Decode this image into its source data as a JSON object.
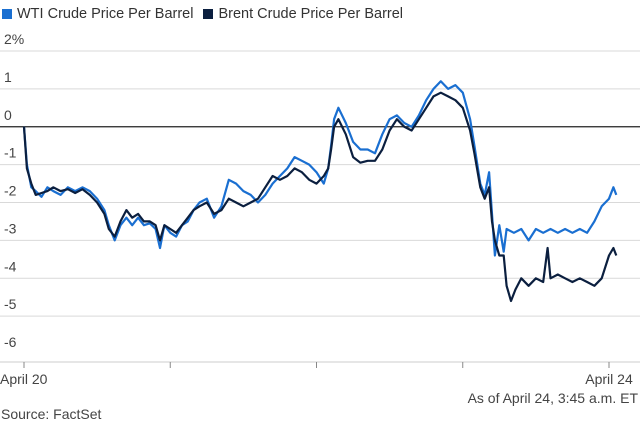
{
  "legend": [
    {
      "label": "WTI Crude Price Per Barrel",
      "color": "#1a6fd1"
    },
    {
      "label": "Brent Crude Price Per Barrel",
      "color": "#0b1f3f"
    }
  ],
  "note": "As of April 24, 3:45 a.m. ET",
  "source": "Source: FactSet",
  "chart_data": {
    "type": "line",
    "title": "",
    "xlabel": "",
    "ylabel": "",
    "y_unit": "%",
    "ylim": [
      -6,
      2
    ],
    "yticks": [
      {
        "value": 2,
        "label": "2%"
      },
      {
        "value": 1,
        "label": "1"
      },
      {
        "value": 0,
        "label": "0"
      },
      {
        "value": -1,
        "label": "-1"
      },
      {
        "value": -2,
        "label": "-2"
      },
      {
        "value": -3,
        "label": "-3"
      },
      {
        "value": -4,
        "label": "-4"
      },
      {
        "value": -5,
        "label": "-5"
      },
      {
        "value": -6,
        "label": "-6"
      }
    ],
    "xlim": [
      0,
      4.05
    ],
    "x_unit": "trading days since April 20",
    "xticks": [
      {
        "value": 0,
        "label": "April 20"
      },
      {
        "value": 1,
        "label": ""
      },
      {
        "value": 2,
        "label": ""
      },
      {
        "value": 3,
        "label": ""
      },
      {
        "value": 4,
        "label": "April 24"
      }
    ],
    "grid": "horizontal",
    "series": [
      {
        "name": "WTI Crude Price Per Barrel",
        "color": "#1a6fd1",
        "points": [
          [
            0,
            0
          ],
          [
            0.02,
            -1.0
          ],
          [
            0.05,
            -1.6
          ],
          [
            0.08,
            -1.7
          ],
          [
            0.12,
            -1.85
          ],
          [
            0.16,
            -1.6
          ],
          [
            0.2,
            -1.7
          ],
          [
            0.25,
            -1.8
          ],
          [
            0.3,
            -1.6
          ],
          [
            0.35,
            -1.7
          ],
          [
            0.4,
            -1.6
          ],
          [
            0.45,
            -1.7
          ],
          [
            0.5,
            -1.9
          ],
          [
            0.55,
            -2.2
          ],
          [
            0.58,
            -2.6
          ],
          [
            0.62,
            -3.0
          ],
          [
            0.66,
            -2.6
          ],
          [
            0.7,
            -2.4
          ],
          [
            0.74,
            -2.6
          ],
          [
            0.78,
            -2.4
          ],
          [
            0.82,
            -2.6
          ],
          [
            0.86,
            -2.55
          ],
          [
            0.9,
            -2.7
          ],
          [
            0.93,
            -3.2
          ],
          [
            0.96,
            -2.6
          ],
          [
            1.0,
            -2.8
          ],
          [
            1.04,
            -2.9
          ],
          [
            1.08,
            -2.6
          ],
          [
            1.12,
            -2.5
          ],
          [
            1.16,
            -2.2
          ],
          [
            1.2,
            -2.0
          ],
          [
            1.25,
            -1.9
          ],
          [
            1.3,
            -2.4
          ],
          [
            1.35,
            -2.1
          ],
          [
            1.4,
            -1.4
          ],
          [
            1.45,
            -1.5
          ],
          [
            1.5,
            -1.7
          ],
          [
            1.55,
            -1.8
          ],
          [
            1.6,
            -2.0
          ],
          [
            1.65,
            -1.8
          ],
          [
            1.7,
            -1.5
          ],
          [
            1.75,
            -1.3
          ],
          [
            1.8,
            -1.1
          ],
          [
            1.85,
            -0.8
          ],
          [
            1.9,
            -0.9
          ],
          [
            1.95,
            -1.0
          ],
          [
            2.0,
            -1.2
          ],
          [
            2.05,
            -1.5
          ],
          [
            2.08,
            -1.1
          ],
          [
            2.1,
            -0.5
          ],
          [
            2.12,
            0.2
          ],
          [
            2.15,
            0.5
          ],
          [
            2.2,
            0.1
          ],
          [
            2.25,
            -0.4
          ],
          [
            2.3,
            -0.6
          ],
          [
            2.35,
            -0.6
          ],
          [
            2.4,
            -0.7
          ],
          [
            2.45,
            -0.2
          ],
          [
            2.5,
            0.2
          ],
          [
            2.55,
            0.3
          ],
          [
            2.6,
            0.1
          ],
          [
            2.65,
            0.0
          ],
          [
            2.7,
            0.3
          ],
          [
            2.75,
            0.7
          ],
          [
            2.8,
            1.0
          ],
          [
            2.85,
            1.2
          ],
          [
            2.9,
            1.0
          ],
          [
            2.95,
            1.1
          ],
          [
            3.0,
            0.9
          ],
          [
            3.05,
            0.2
          ],
          [
            3.08,
            -0.5
          ],
          [
            3.12,
            -1.5
          ],
          [
            3.15,
            -1.8
          ],
          [
            3.18,
            -1.2
          ],
          [
            3.2,
            -2.3
          ],
          [
            3.22,
            -3.4
          ],
          [
            3.25,
            -2.6
          ],
          [
            3.28,
            -3.3
          ],
          [
            3.3,
            -2.7
          ],
          [
            3.35,
            -2.8
          ],
          [
            3.4,
            -2.7
          ],
          [
            3.45,
            -3.0
          ],
          [
            3.5,
            -2.7
          ],
          [
            3.55,
            -2.8
          ],
          [
            3.6,
            -2.7
          ],
          [
            3.65,
            -2.8
          ],
          [
            3.7,
            -2.7
          ],
          [
            3.75,
            -2.8
          ],
          [
            3.8,
            -2.7
          ],
          [
            3.85,
            -2.8
          ],
          [
            3.9,
            -2.5
          ],
          [
            3.95,
            -2.1
          ],
          [
            4.0,
            -1.9
          ],
          [
            4.03,
            -1.6
          ],
          [
            4.05,
            -1.8
          ]
        ]
      },
      {
        "name": "Brent Crude Price Per Barrel",
        "color": "#0b1f3f",
        "points": [
          [
            0,
            0
          ],
          [
            0.02,
            -1.1
          ],
          [
            0.05,
            -1.5
          ],
          [
            0.08,
            -1.8
          ],
          [
            0.12,
            -1.75
          ],
          [
            0.16,
            -1.7
          ],
          [
            0.2,
            -1.6
          ],
          [
            0.25,
            -1.7
          ],
          [
            0.3,
            -1.65
          ],
          [
            0.35,
            -1.75
          ],
          [
            0.4,
            -1.65
          ],
          [
            0.45,
            -1.8
          ],
          [
            0.5,
            -2.0
          ],
          [
            0.55,
            -2.3
          ],
          [
            0.58,
            -2.7
          ],
          [
            0.62,
            -2.9
          ],
          [
            0.66,
            -2.5
          ],
          [
            0.7,
            -2.2
          ],
          [
            0.74,
            -2.4
          ],
          [
            0.78,
            -2.3
          ],
          [
            0.82,
            -2.5
          ],
          [
            0.86,
            -2.5
          ],
          [
            0.9,
            -2.6
          ],
          [
            0.93,
            -3.0
          ],
          [
            0.96,
            -2.6
          ],
          [
            1.0,
            -2.7
          ],
          [
            1.04,
            -2.8
          ],
          [
            1.08,
            -2.6
          ],
          [
            1.12,
            -2.4
          ],
          [
            1.16,
            -2.2
          ],
          [
            1.2,
            -2.1
          ],
          [
            1.25,
            -2.0
          ],
          [
            1.3,
            -2.3
          ],
          [
            1.35,
            -2.2
          ],
          [
            1.4,
            -1.9
          ],
          [
            1.45,
            -2.0
          ],
          [
            1.5,
            -2.1
          ],
          [
            1.55,
            -2.0
          ],
          [
            1.6,
            -1.9
          ],
          [
            1.65,
            -1.6
          ],
          [
            1.7,
            -1.3
          ],
          [
            1.75,
            -1.4
          ],
          [
            1.8,
            -1.3
          ],
          [
            1.85,
            -1.1
          ],
          [
            1.9,
            -1.2
          ],
          [
            1.95,
            -1.4
          ],
          [
            2.0,
            -1.5
          ],
          [
            2.05,
            -1.3
          ],
          [
            2.08,
            -1.1
          ],
          [
            2.1,
            -0.6
          ],
          [
            2.12,
            0.0
          ],
          [
            2.15,
            0.2
          ],
          [
            2.2,
            -0.2
          ],
          [
            2.25,
            -0.8
          ],
          [
            2.3,
            -0.95
          ],
          [
            2.35,
            -0.9
          ],
          [
            2.4,
            -0.9
          ],
          [
            2.45,
            -0.6
          ],
          [
            2.5,
            -0.1
          ],
          [
            2.55,
            0.2
          ],
          [
            2.6,
            0.0
          ],
          [
            2.65,
            -0.1
          ],
          [
            2.7,
            0.2
          ],
          [
            2.75,
            0.5
          ],
          [
            2.8,
            0.8
          ],
          [
            2.85,
            0.9
          ],
          [
            2.9,
            0.8
          ],
          [
            2.95,
            0.7
          ],
          [
            3.0,
            0.5
          ],
          [
            3.05,
            -0.1
          ],
          [
            3.08,
            -0.7
          ],
          [
            3.12,
            -1.6
          ],
          [
            3.15,
            -1.9
          ],
          [
            3.18,
            -1.6
          ],
          [
            3.2,
            -2.5
          ],
          [
            3.22,
            -3.0
          ],
          [
            3.25,
            -3.4
          ],
          [
            3.28,
            -3.4
          ],
          [
            3.3,
            -4.2
          ],
          [
            3.33,
            -4.6
          ],
          [
            3.36,
            -4.3
          ],
          [
            3.4,
            -4.0
          ],
          [
            3.45,
            -4.2
          ],
          [
            3.5,
            -4.0
          ],
          [
            3.55,
            -4.1
          ],
          [
            3.58,
            -3.2
          ],
          [
            3.6,
            -4.0
          ],
          [
            3.65,
            -3.9
          ],
          [
            3.7,
            -4.0
          ],
          [
            3.75,
            -4.1
          ],
          [
            3.8,
            -4.0
          ],
          [
            3.85,
            -4.1
          ],
          [
            3.9,
            -4.2
          ],
          [
            3.95,
            -4.0
          ],
          [
            4.0,
            -3.4
          ],
          [
            4.03,
            -3.2
          ],
          [
            4.05,
            -3.4
          ]
        ]
      }
    ]
  }
}
